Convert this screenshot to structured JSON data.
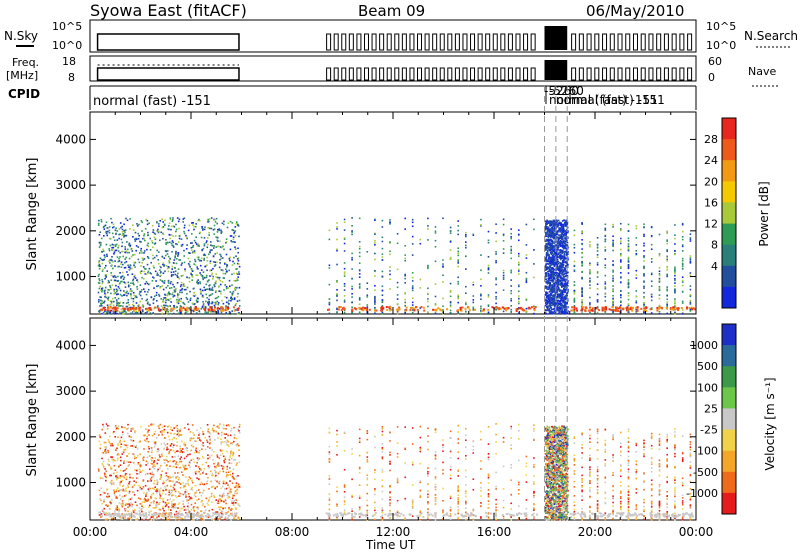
{
  "header": {
    "station": "Syowa East (fitACF)",
    "beam": "Beam 09",
    "date": "06/May/2010"
  },
  "panels": {
    "nsky": {
      "label": "N.Sky",
      "ticks": [
        "10^5",
        "10^0"
      ]
    },
    "nsearch": {
      "label": "N.Search",
      "ticks": [
        "10^5",
        "10^0"
      ]
    },
    "freq": {
      "label_top": "Freq.",
      "label_bottom": "[MHz]",
      "ticks": [
        "18",
        "8"
      ]
    },
    "nave": {
      "label": "Nave",
      "ticks": [
        "60",
        "0"
      ]
    },
    "cpid": {
      "label": "CPID",
      "main": "normal (fast) -151",
      "overlap_a": "-5260",
      "overlap_b": "normal (fast) -151"
    }
  },
  "power": {
    "ylabel": "Slant Range [km]",
    "cbar_label": "Power [dB]",
    "cbar_ticks": [
      "28",
      "24",
      "20",
      "16",
      "12",
      "8",
      "4"
    ],
    "cbar_colors": [
      "#e8281e",
      "#ee5a19",
      "#f39a15",
      "#f5c900",
      "#a7c93a",
      "#2f9c55",
      "#2b7f7a",
      "#214f9e",
      "#1328dc"
    ]
  },
  "velocity": {
    "ylabel": "Slant Range [km]",
    "cbar_label": "Velocity [m s⁻¹]",
    "cbar_ticks": [
      "1000",
      "500",
      "100",
      "25",
      "-25",
      "-100",
      "-500",
      "-1000"
    ],
    "cbar_colors": [
      "#1d2fc7",
      "#2b6b9c",
      "#3a9a4a",
      "#6cc64a",
      "#c8c8c8",
      "#f1d34a",
      "#f4a628",
      "#f06a1c",
      "#e61b1b"
    ]
  },
  "chart_data": {
    "type": "heatmap",
    "title": "Syowa East (fitACF)",
    "xlabel": "Time UT",
    "ylabel": "Slant Range [km]",
    "x_ticks": [
      "00:00",
      "04:00",
      "08:00",
      "12:00",
      "16:00",
      "20:00",
      "00:00"
    ],
    "y_ticks": [
      1000,
      2000,
      3000,
      4000
    ],
    "xlim_hours": [
      0,
      24
    ],
    "ylim_km": [
      180,
      4600
    ],
    "grid": false,
    "scatter_blocks": [
      {
        "t0": 0.3,
        "t1": 5.9,
        "r0": 200,
        "r1": 2300,
        "note": "continuous echoes"
      },
      {
        "t0": 9.3,
        "t1": 17.7,
        "r0": 200,
        "r1": 2300,
        "note": "sparse short soundings"
      },
      {
        "t0": 18.0,
        "t1": 18.9,
        "r0": 200,
        "r1": 2250,
        "note": "dense block"
      },
      {
        "t0": 19.0,
        "t1": 23.9,
        "r0": 200,
        "r1": 2200,
        "note": "sparse short soundings"
      }
    ]
  }
}
